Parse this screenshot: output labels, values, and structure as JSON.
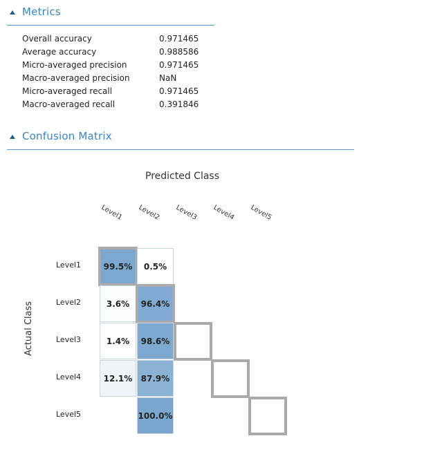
{
  "metrics_section": {
    "title": "Metrics"
  },
  "metrics": [
    {
      "label": "Overall accuracy",
      "value": "0.971465"
    },
    {
      "label": "Average accuracy",
      "value": "0.988586"
    },
    {
      "label": "Micro-averaged precision",
      "value": "0.971465"
    },
    {
      "label": "Macro-averaged precision",
      "value": "NaN"
    },
    {
      "label": "Micro-averaged recall",
      "value": "0.971465"
    },
    {
      "label": "Macro-averaged recall",
      "value": "0.391846"
    }
  ],
  "confusion_section": {
    "title": "Confusion Matrix"
  },
  "confusion": {
    "predicted_label": "Predicted Class",
    "actual_label": "Actual Class",
    "columns": [
      "Level1",
      "Level2",
      "Level3",
      "Level4",
      "Level5"
    ],
    "rows": [
      "Level1",
      "Level2",
      "Level3",
      "Level4",
      "Level5"
    ],
    "cells": [
      {
        "row": 0,
        "col": 0,
        "text": "99.5%",
        "value": 0.995,
        "diag": true
      },
      {
        "row": 0,
        "col": 1,
        "text": "0.5%",
        "value": 0.005,
        "diag": false
      },
      {
        "row": 1,
        "col": 0,
        "text": "3.6%",
        "value": 0.036,
        "diag": false
      },
      {
        "row": 1,
        "col": 1,
        "text": "96.4%",
        "value": 0.964,
        "diag": true
      },
      {
        "row": 2,
        "col": 0,
        "text": "1.4%",
        "value": 0.014,
        "diag": false
      },
      {
        "row": 2,
        "col": 1,
        "text": "98.6%",
        "value": 0.986,
        "diag": false
      },
      {
        "row": 3,
        "col": 0,
        "text": "12.1%",
        "value": 0.121,
        "diag": false
      },
      {
        "row": 3,
        "col": 1,
        "text": "87.9%",
        "value": 0.879,
        "diag": false
      },
      {
        "row": 4,
        "col": 1,
        "text": "100.0%",
        "value": 1.0,
        "diag": false
      }
    ],
    "colors": {
      "high": "#7ba7cf",
      "low": "#ffffff",
      "diag_border": "#aaaaaa",
      "cell_border": "#c9d6e2"
    }
  }
}
